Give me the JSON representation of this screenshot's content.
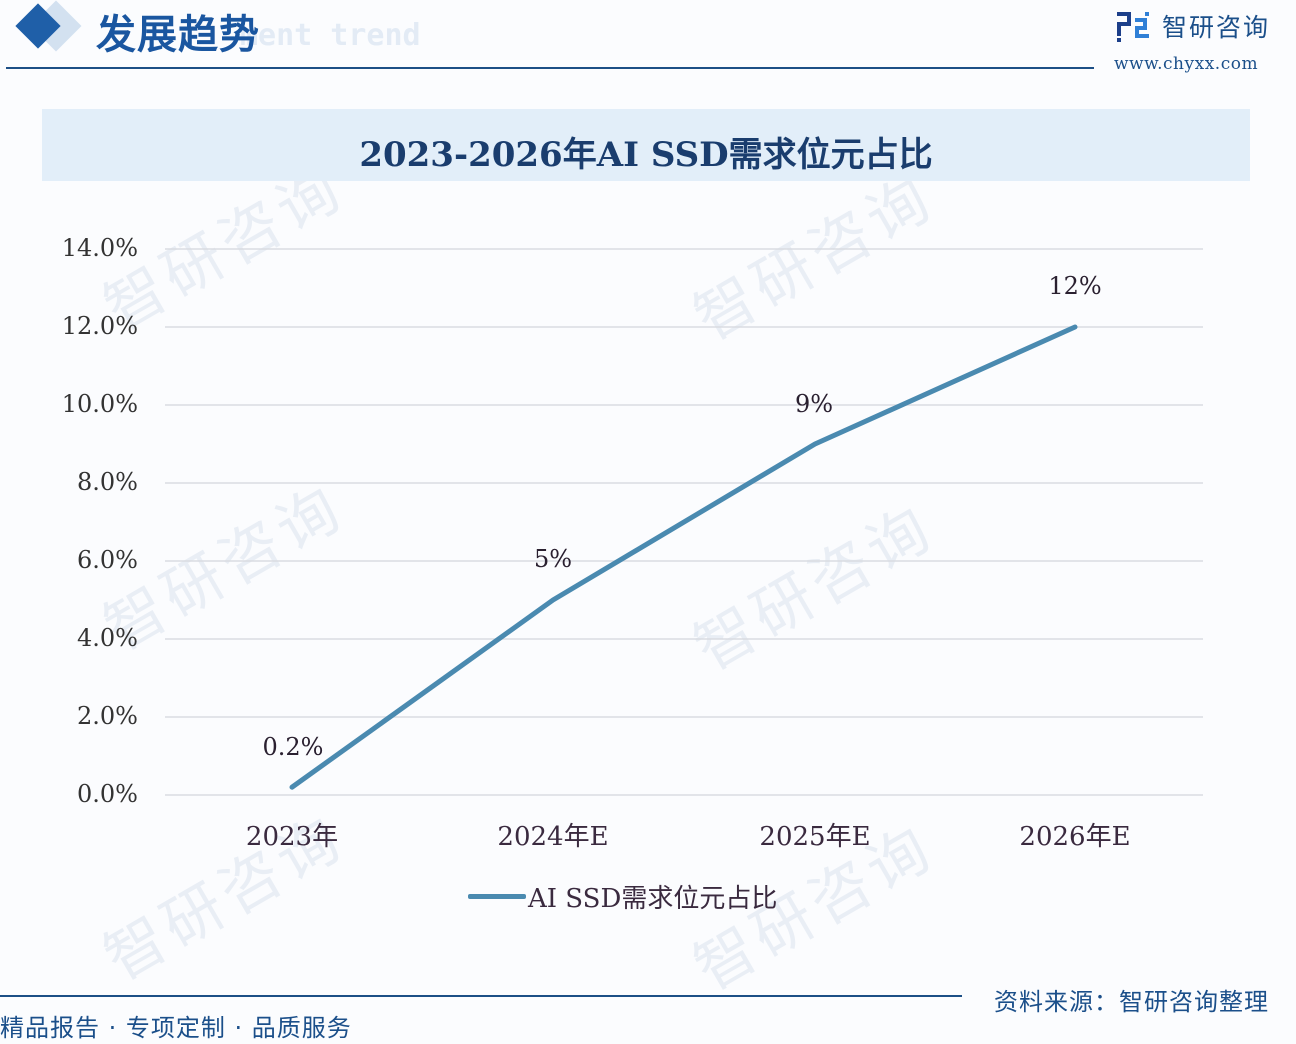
{
  "header": {
    "title": "发展趋势",
    "subtitle_watermark": "ment trend",
    "icon": "diamond-icon"
  },
  "brand": {
    "name": "智研咨询",
    "url": "www.chyxx.com",
    "icon": "chyxx-logo-icon"
  },
  "footer": {
    "slogan": "精品报告 · 专项定制 · 品质服务",
    "source": "资料来源：智研咨询整理"
  },
  "colors": {
    "accent": "#1f5fa8",
    "line": "#4a8ab0",
    "title_band": "#e2eef9",
    "rule": "#1c4f86",
    "grid": "#d9dce2"
  },
  "watermark_text": "智研咨询",
  "chart_data": {
    "type": "line",
    "title": "2023-2026年AI SSD需求位元占比",
    "xlabel": "",
    "ylabel": "",
    "categories": [
      "2023年",
      "2024年E",
      "2025年E",
      "2026年E"
    ],
    "series": [
      {
        "name": "AI SSD需求位元占比",
        "values": [
          0.2,
          5,
          9,
          12
        ],
        "labels": [
          "0.2%",
          "5%",
          "9%",
          "12%"
        ]
      }
    ],
    "yticks": [
      "0.0%",
      "2.0%",
      "4.0%",
      "6.0%",
      "8.0%",
      "10.0%",
      "12.0%",
      "14.0%"
    ],
    "ylim": [
      0,
      14
    ],
    "grid": true,
    "legend_position": "bottom"
  }
}
